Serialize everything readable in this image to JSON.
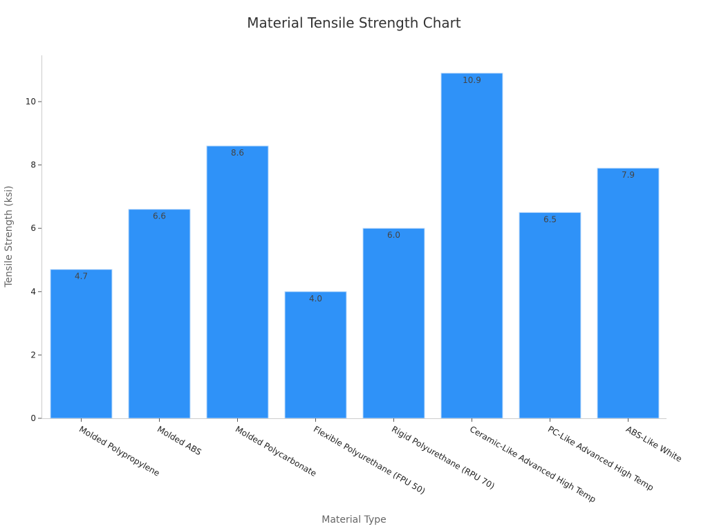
{
  "chart_data": {
    "type": "bar",
    "title": "Material Tensile Strength Chart",
    "xlabel": "Material Type",
    "ylabel": "Tensile Strength (ksi)",
    "categories": [
      "Molded Polypropylene",
      "Molded ABS",
      "Molded Polycarbonate",
      "Flexible Polyurethane (FPU 50)",
      "Rigid Polyurethane (RPU 70)",
      "Ceramic-Like Advanced High Temp",
      "PC-Like Advanced High Temp",
      "ABS-Like White"
    ],
    "values": [
      4.7,
      6.6,
      8.6,
      4.0,
      6.0,
      10.9,
      6.5,
      7.9
    ],
    "data_labels": [
      "4.7",
      "6.6",
      "8.6",
      "4.0",
      "6.0",
      "10.9",
      "6.5",
      "7.9"
    ],
    "ylim": [
      0,
      11.5
    ],
    "yticks": [
      0,
      2,
      4,
      6,
      8,
      10
    ],
    "ytick_labels": [
      "0",
      "2",
      "4",
      "6",
      "8",
      "10"
    ],
    "grid": false,
    "legend": "none",
    "bar_color": "#2f92f8"
  }
}
